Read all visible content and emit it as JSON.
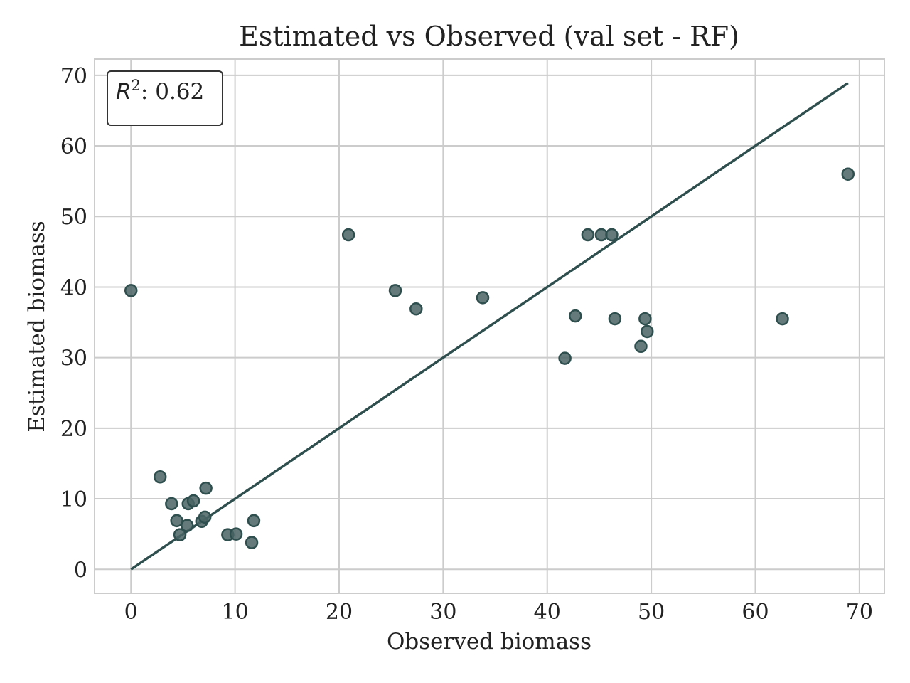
{
  "chart_data": {
    "type": "scatter",
    "title": "Estimated vs Observed (val set - RF)",
    "xlabel": "Observed biomass",
    "ylabel": "Estimated biomass",
    "xlim": [
      -3.5,
      72.4
    ],
    "ylim": [
      -3.4,
      72.3
    ],
    "xticks": [
      0,
      10,
      20,
      30,
      40,
      50,
      60,
      70
    ],
    "yticks": [
      0,
      10,
      20,
      30,
      40,
      50,
      60,
      70
    ],
    "grid": true,
    "annotation": {
      "symbol": "R",
      "exponent": "2",
      "text": ": 0.62",
      "position": "top-left"
    },
    "colors": {
      "points": "#4a6464",
      "point_edge": "#2f4f4f",
      "line": "#2f4f4f"
    },
    "reference_line": {
      "x": [
        0,
        68.9
      ],
      "y": [
        0,
        68.9
      ]
    },
    "points": [
      {
        "x": 0.0,
        "y": 39.5
      },
      {
        "x": 2.8,
        "y": 13.1
      },
      {
        "x": 3.9,
        "y": 9.3
      },
      {
        "x": 4.4,
        "y": 6.9
      },
      {
        "x": 4.7,
        "y": 4.9
      },
      {
        "x": 5.4,
        "y": 6.2
      },
      {
        "x": 5.5,
        "y": 9.3
      },
      {
        "x": 6.0,
        "y": 9.7
      },
      {
        "x": 6.8,
        "y": 6.8
      },
      {
        "x": 7.1,
        "y": 7.4
      },
      {
        "x": 7.2,
        "y": 11.5
      },
      {
        "x": 9.3,
        "y": 4.9
      },
      {
        "x": 10.1,
        "y": 5.0
      },
      {
        "x": 11.6,
        "y": 3.8
      },
      {
        "x": 11.8,
        "y": 6.9
      },
      {
        "x": 20.9,
        "y": 47.4
      },
      {
        "x": 25.4,
        "y": 39.5
      },
      {
        "x": 27.4,
        "y": 36.9
      },
      {
        "x": 33.8,
        "y": 38.5
      },
      {
        "x": 41.7,
        "y": 29.9
      },
      {
        "x": 42.7,
        "y": 35.9
      },
      {
        "x": 43.9,
        "y": 47.4
      },
      {
        "x": 45.2,
        "y": 47.4
      },
      {
        "x": 46.2,
        "y": 47.4
      },
      {
        "x": 46.5,
        "y": 35.5
      },
      {
        "x": 49.0,
        "y": 31.6
      },
      {
        "x": 49.4,
        "y": 35.5
      },
      {
        "x": 49.6,
        "y": 33.7
      },
      {
        "x": 62.6,
        "y": 35.5
      },
      {
        "x": 68.9,
        "y": 56.0
      }
    ]
  }
}
